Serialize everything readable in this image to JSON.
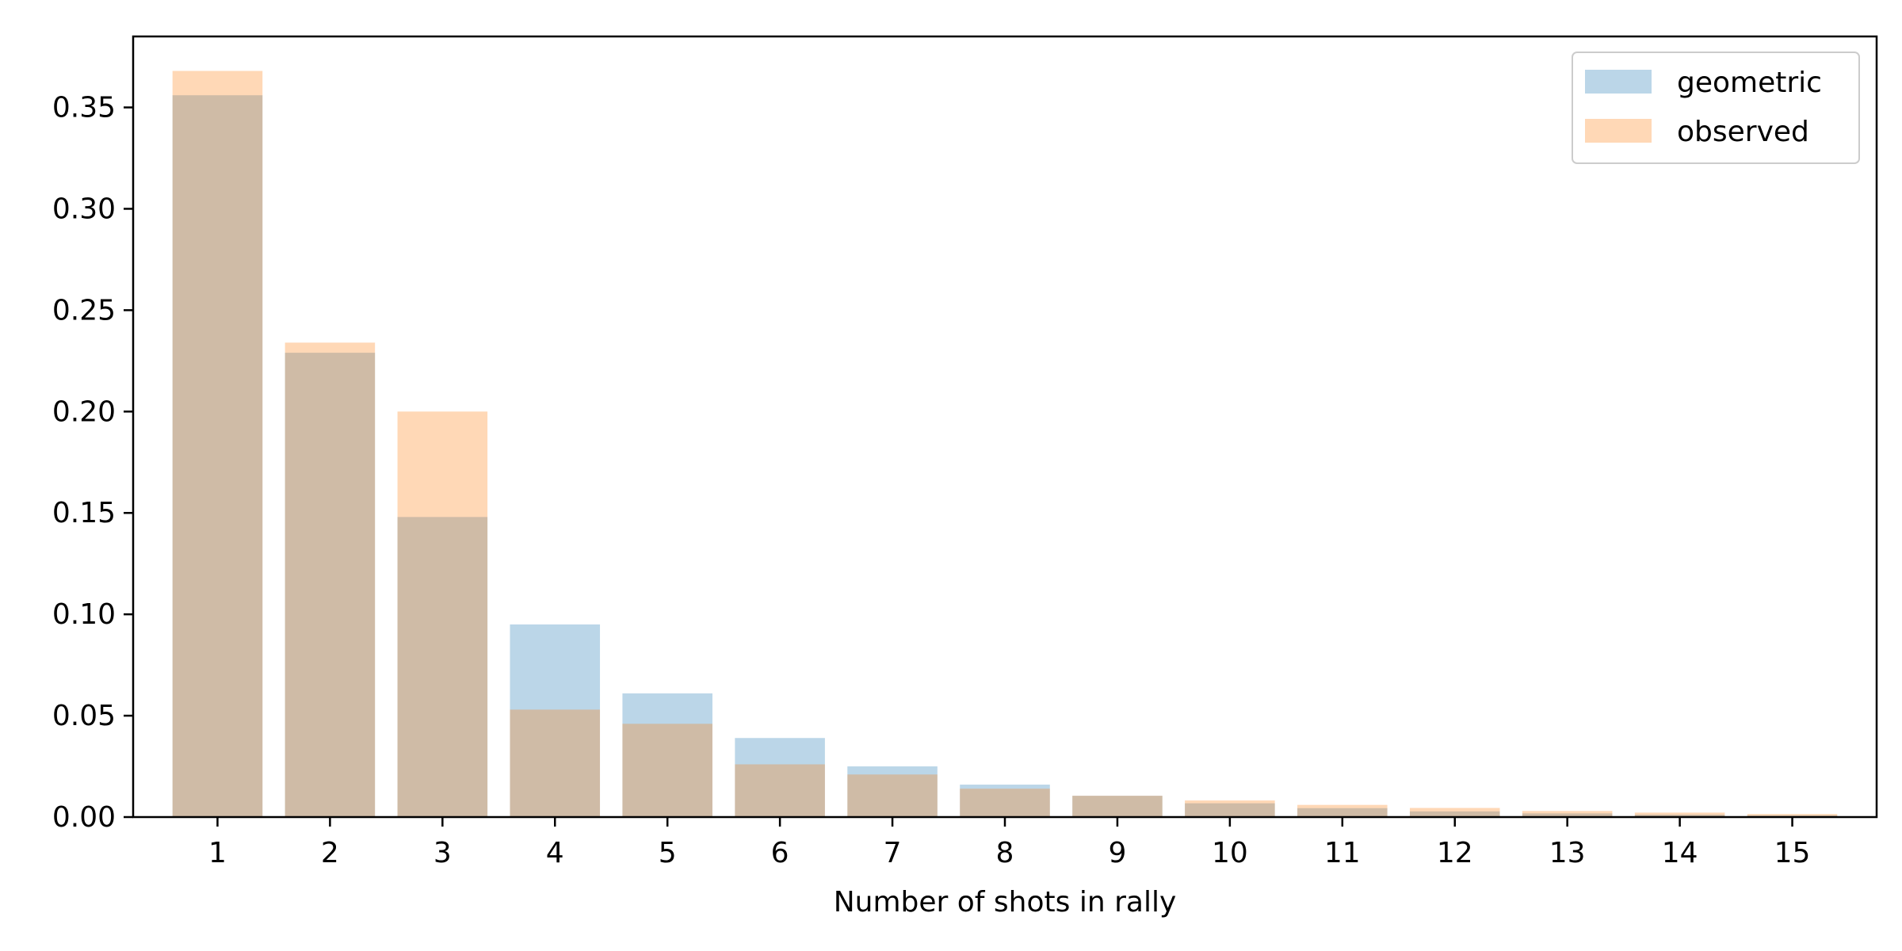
{
  "chart_data": {
    "type": "bar",
    "categories": [
      "1",
      "2",
      "3",
      "4",
      "5",
      "6",
      "7",
      "8",
      "9",
      "10",
      "11",
      "12",
      "13",
      "14",
      "15"
    ],
    "series": [
      {
        "name": "geometric",
        "color": "#1f77b4",
        "alpha": 0.3,
        "values": [
          0.356,
          0.229,
          0.148,
          0.095,
          0.061,
          0.039,
          0.025,
          0.016,
          0.0105,
          0.0068,
          0.0044,
          0.0028,
          0.0018,
          0.0012,
          0.0008
        ]
      },
      {
        "name": "observed",
        "color": "#ff7f0e",
        "alpha": 0.3,
        "values": [
          0.368,
          0.234,
          0.2,
          0.053,
          0.046,
          0.026,
          0.021,
          0.014,
          0.0105,
          0.0082,
          0.006,
          0.0045,
          0.003,
          0.0022,
          0.0015
        ]
      }
    ],
    "xlabel": "Number of shots in rally",
    "ylabel": "",
    "ylim": [
      0,
      0.385
    ],
    "yticks": [
      0.0,
      0.05,
      0.1,
      0.15,
      0.2,
      0.25,
      0.3,
      0.35
    ],
    "ytick_labels": [
      "0.00",
      "0.05",
      "0.10",
      "0.15",
      "0.20",
      "0.25",
      "0.30",
      "0.35"
    ],
    "grid": false,
    "legend_position": "top-right"
  }
}
